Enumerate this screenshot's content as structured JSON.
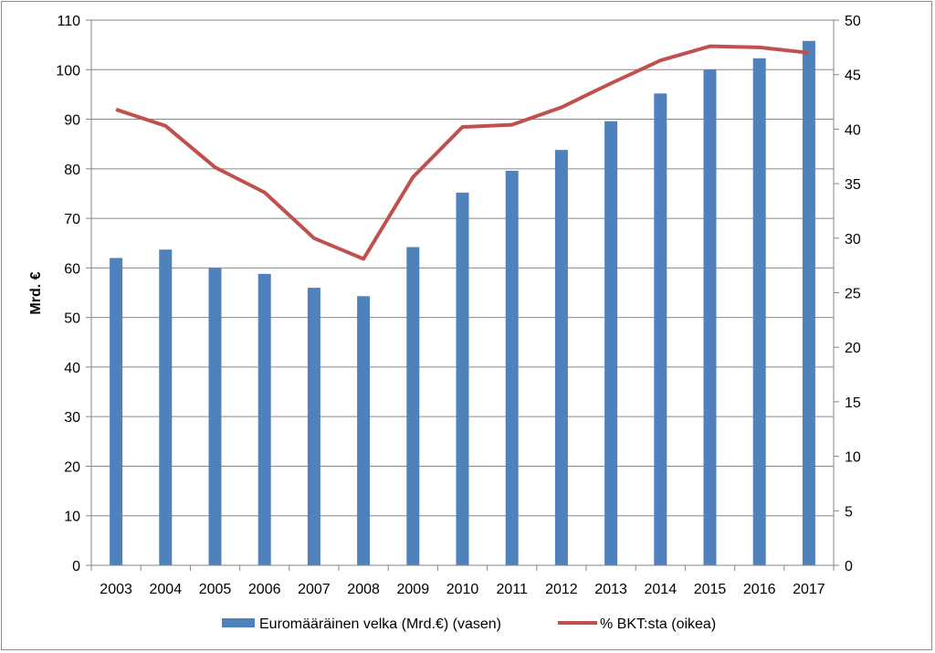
{
  "chart_data": {
    "type": "bar",
    "title": "",
    "xlabel": "",
    "ylabel": "Mrd. €",
    "y2label": "",
    "categories": [
      "2003",
      "2004",
      "2005",
      "2006",
      "2007",
      "2008",
      "2009",
      "2010",
      "2011",
      "2012",
      "2013",
      "2014",
      "2015",
      "2016",
      "2017"
    ],
    "ylim": [
      0,
      110
    ],
    "y2lim": [
      0,
      50
    ],
    "yticks": [
      0,
      10,
      20,
      30,
      40,
      50,
      60,
      70,
      80,
      90,
      100,
      110
    ],
    "y2ticks": [
      0,
      5,
      10,
      15,
      20,
      25,
      30,
      35,
      40,
      45,
      50
    ],
    "grid": true,
    "legend_position": "bottom",
    "series": [
      {
        "name": "Euromääräinen velka (Mrd.€) (vasen)",
        "type": "bar",
        "axis": "left",
        "color": "#4f81bd",
        "values": [
          62.0,
          63.7,
          60.0,
          58.8,
          56.0,
          54.3,
          64.2,
          75.2,
          79.6,
          83.8,
          89.6,
          95.2,
          100.0,
          102.3,
          105.8
        ]
      },
      {
        "name": "% BKT:sta (oikea)",
        "type": "line",
        "axis": "right",
        "color": "#c0504d",
        "values": [
          41.8,
          40.3,
          36.5,
          34.2,
          30.0,
          28.1,
          35.6,
          40.2,
          40.4,
          42.0,
          44.2,
          46.3,
          47.6,
          47.5,
          47.0
        ]
      }
    ]
  }
}
